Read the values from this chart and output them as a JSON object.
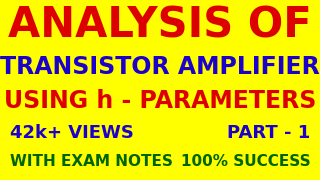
{
  "background_color": "#FFFF00",
  "line1_text": "ANALYSIS OF",
  "line1_color": "#DD0000",
  "line2_text": "TRANSISTOR AMPLIFIER",
  "line2_color": "#1C00CC",
  "line3_text": "USING h - PARAMETERS",
  "line3_color": "#DD0000",
  "line4_left_text": "42k+ VIEWS",
  "line4_left_color": "#1C00CC",
  "line4_right_text": "PART - 1",
  "line4_right_color": "#1C00CC",
  "line5_left_text": "WITH EXAM NOTES",
  "line5_left_color": "#006400",
  "line5_right_text": "100% SUCCESS",
  "line5_right_color": "#006400",
  "line1_fontsize": 30,
  "line2_fontsize": 17,
  "line3_fontsize": 17,
  "line4_fontsize": 13,
  "line5_fontsize": 11
}
